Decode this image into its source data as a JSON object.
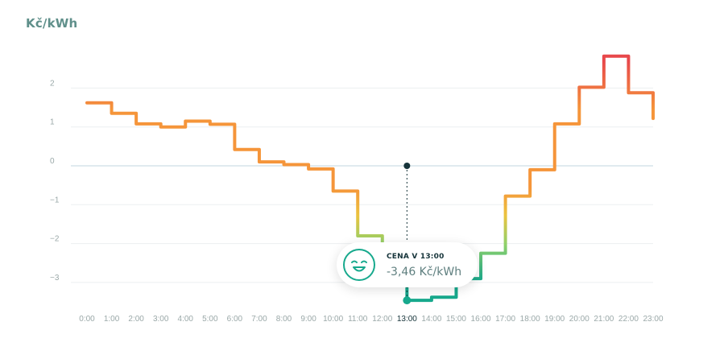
{
  "unit_label": "Kč/kWh",
  "chart_data": {
    "type": "line",
    "step": true,
    "ylabel": "Kč/kWh",
    "ylim": [
      -3.6,
      2.7
    ],
    "yticks": [
      2,
      1,
      0,
      -1,
      -2,
      -3
    ],
    "ytick_labels": [
      "2",
      "1",
      "0",
      "−1",
      "−2",
      "−3"
    ],
    "categories": [
      "0:00",
      "1:00",
      "2:00",
      "3:00",
      "4:00",
      "5:00",
      "6:00",
      "7:00",
      "8:00",
      "9:00",
      "10:00",
      "11:00",
      "12:00",
      "13:00",
      "14:00",
      "15:00",
      "16:00",
      "17:00",
      "18:00",
      "19:00",
      "20:00",
      "21:00",
      "22:00",
      "23:00"
    ],
    "values": [
      1.62,
      1.35,
      1.08,
      1.0,
      1.15,
      1.07,
      0.42,
      0.1,
      0.03,
      -0.08,
      -0.65,
      -1.8,
      -2.35,
      -3.46,
      -3.38,
      -2.9,
      -2.25,
      -0.78,
      -0.1,
      1.08,
      2.02,
      2.82,
      1.88,
      1.58
    ],
    "end_value": 1.22,
    "colors": {
      "high": "#e8484b",
      "mid": "#f5953a",
      "low": "#ecc33e",
      "neg": "#8fd16a",
      "min": "#17a98d",
      "grid": "#eceff1",
      "zero": "#d6e4ea",
      "marker": "#16343a"
    },
    "highlight": {
      "category": "13:00",
      "title": "CENA V 13:00",
      "value_text": "-3,46 Kč/kWh",
      "icon": "smiley-face-icon"
    }
  }
}
